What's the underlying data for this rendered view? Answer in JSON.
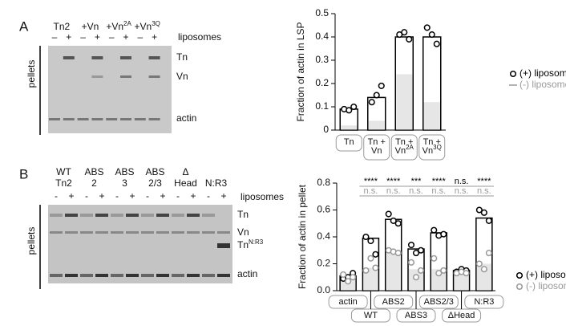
{
  "panel_labels": [
    "A",
    "B"
  ],
  "gel_a": {
    "lanes": [
      {
        "text": "Tn2"
      },
      {
        "text": "+Vn"
      },
      {
        "text": "+Vn",
        "sup": "2A"
      },
      {
        "text": "+Vn",
        "sup": "3Q"
      }
    ],
    "signs": [
      "–",
      "+"
    ],
    "condition": "liposomes",
    "side": "pellets",
    "bands": [
      "Tn",
      "Vn",
      "actin"
    ]
  },
  "gel_b": {
    "lanes": [
      [
        "WT",
        "Tn2"
      ],
      [
        "ABS",
        "2"
      ],
      [
        "ABS",
        "3"
      ],
      [
        "ABS",
        "2/3"
      ],
      [
        "Δ",
        "Head"
      ],
      [
        "N:R3"
      ]
    ],
    "signs": [
      "-",
      "+"
    ],
    "condition": "liposomes",
    "side": "pellets",
    "bands": [
      {
        "text": "Tn"
      },
      {
        "text": "Vn"
      },
      {
        "text": "Tn",
        "sup": "N:R3"
      },
      {
        "text": "actin"
      }
    ]
  },
  "chart_data": [
    {
      "type": "bar",
      "ylabel": "Fraction of actin in LSP",
      "categories": [
        [
          "Tn"
        ],
        [
          "Tn +",
          "Vn"
        ],
        [
          "Tn +",
          {
            "text": "Vn",
            "sup": "2A"
          }
        ],
        [
          "Tn +",
          {
            "text": "Vn",
            "sup": "3Q"
          }
        ]
      ],
      "ylim": [
        0,
        0.5
      ],
      "yticks": [
        0,
        0.1,
        0.2,
        0.3,
        0.4,
        0.5
      ],
      "series": [
        {
          "name": "(+) liposomes",
          "color": "#000000",
          "values": [
            0.09,
            0.14,
            0.4,
            0.4
          ],
          "points": [
            [
              0.09,
              0.085,
              0.1
            ],
            [
              0.12,
              0.15,
              0.19
            ],
            [
              0.41,
              0.42,
              0.39
            ],
            [
              0.44,
              0.41,
              0.37
            ]
          ]
        },
        {
          "name": "(-) liposomes",
          "color": "#999999",
          "values": [
            0.02,
            0.04,
            0.24,
            0.12
          ]
        }
      ]
    },
    {
      "type": "bar",
      "ylabel": "Fraction of actin in pellet",
      "categories": [
        [
          "actin"
        ],
        [
          "WT"
        ],
        [
          "ABS2"
        ],
        [
          "ABS3"
        ],
        [
          "ABS2/3"
        ],
        [
          "ΔHead"
        ],
        [
          "N:R3"
        ]
      ],
      "ylim": [
        0,
        0.8
      ],
      "yticks": [
        {
          "value": 0,
          "label": "0.0"
        },
        0.2,
        0.4,
        0.6,
        0.8
      ],
      "significance": [
        [
          null,
          "****",
          "****",
          "***",
          "****",
          "n.s.",
          "****"
        ],
        [
          null,
          "n.s.",
          "n.s.",
          "n.s.",
          "n.s.",
          "n.s.",
          "n.s."
        ]
      ],
      "series": [
        {
          "name": "(+) liposomes",
          "color": "#000000",
          "values": [
            0.11,
            0.39,
            0.53,
            0.31,
            0.43,
            0.15,
            0.54
          ],
          "points": [
            [
              0.09,
              0.1,
              0.13
            ],
            [
              0.4,
              0.37,
              0.27
            ],
            [
              0.57,
              0.52,
              0.5
            ],
            [
              0.34,
              0.28,
              0.3
            ],
            [
              0.45,
              0.41,
              0.42
            ],
            [
              0.14,
              0.16,
              0.15
            ],
            [
              0.6,
              0.58,
              0.52
            ]
          ]
        },
        {
          "name": "(-) liposomes",
          "color": "#999999",
          "values": [
            0.1,
            0.17,
            0.29,
            0.16,
            0.16,
            0.14,
            0.2
          ],
          "points": [
            [
              0.12,
              0.07,
              0.1
            ],
            [
              0.15,
              0.24,
              0.17
            ],
            [
              0.3,
              0.29,
              0.28
            ],
            [
              0.21,
              0.1,
              0.15
            ],
            [
              0.24,
              0.13,
              0.15
            ],
            [
              0.13,
              0.14,
              0.13
            ],
            [
              0.2,
              0.16,
              0.28
            ]
          ]
        }
      ]
    }
  ]
}
